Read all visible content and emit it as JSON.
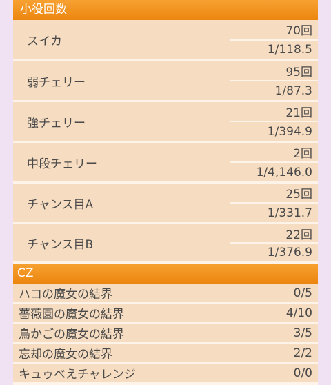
{
  "koyaku": {
    "title": "小役回数",
    "rows": [
      {
        "label": "スイカ",
        "count": "70回",
        "rate": "1/118.5"
      },
      {
        "label": "弱チェリー",
        "count": "95回",
        "rate": "1/87.3"
      },
      {
        "label": "強チェリー",
        "count": "21回",
        "rate": "1/394.9"
      },
      {
        "label": "中段チェリー",
        "count": "2回",
        "rate": "1/4,146.0"
      },
      {
        "label": "チャンス目A",
        "count": "25回",
        "rate": "1/331.7"
      },
      {
        "label": "チャンス目B",
        "count": "22回",
        "rate": "1/376.9"
      }
    ]
  },
  "cz": {
    "title": "CZ",
    "rows": [
      {
        "label": "ハコの魔女の結界",
        "value": "0/5"
      },
      {
        "label": "薔薇園の魔女の結界",
        "value": "4/10"
      },
      {
        "label": "鳥かごの魔女の結界",
        "value": "3/5"
      },
      {
        "label": "忘却の魔女の結界",
        "value": "2/2"
      },
      {
        "label": "キュゥべえチャレンジ",
        "value": "0/0"
      }
    ]
  }
}
